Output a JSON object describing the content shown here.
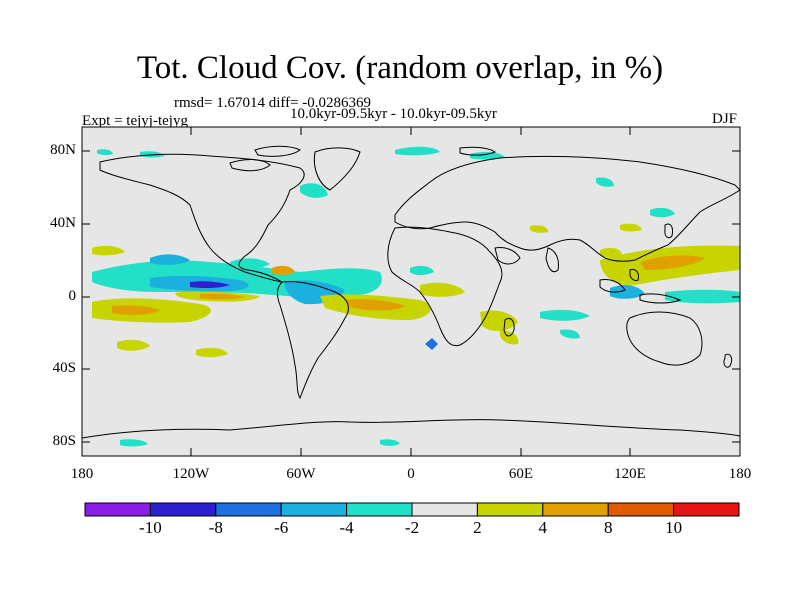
{
  "title": "Tot. Cloud Cov. (random overlap, in %)",
  "rmsd_line": "rmsd= 1.67014  diff= -0.0286369",
  "period_line": "10.0kyr-09.5kyr - 10.0kyr-09.5kyr",
  "expt_label": "Expt = tejyj-tejyg",
  "season": "DJF",
  "map": {
    "lon_ticks": [
      "180",
      "120W",
      "60W",
      "0",
      "60E",
      "120E",
      "180"
    ],
    "lat_ticks": [
      "80N",
      "40N",
      "0",
      "40S",
      "80S"
    ],
    "background_color": "#e6e6e6",
    "coastline_color": "#000000"
  },
  "colorbar": {
    "levels": [
      "-10",
      "-8",
      "-6",
      "-4",
      "-2",
      "2",
      "4",
      "8",
      "10"
    ],
    "colors": [
      "#8a1ee6",
      "#2b1fcf",
      "#1e6fe0",
      "#1cb0df",
      "#22e0c8",
      "#e6e6e6",
      "#c8d400",
      "#e0a000",
      "#e05a00",
      "#e61414"
    ]
  }
}
